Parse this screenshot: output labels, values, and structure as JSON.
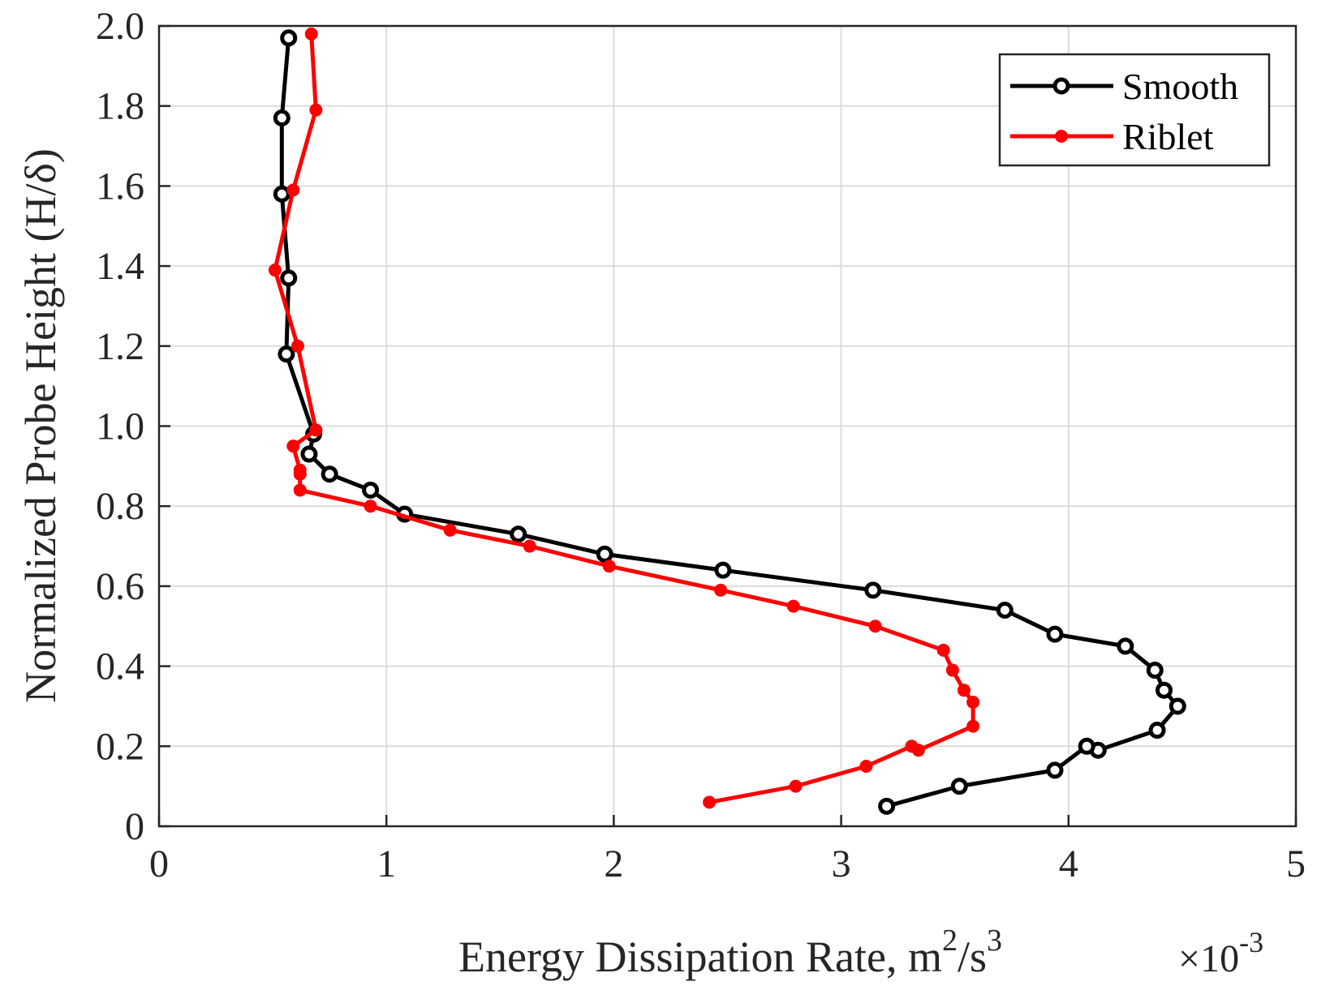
{
  "chart_data": {
    "type": "line",
    "xlabel": "Energy Dissipation Rate, m",
    "xlabel_sup1": "2",
    "xlabel_mid": "/s",
    "xlabel_sup2": "3",
    "x_multiplier": "×10",
    "x_multiplier_exp": "-3",
    "ylabel": "Normalized Probe Height (H/δ)",
    "xlim": [
      0,
      5
    ],
    "ylim": [
      0,
      2
    ],
    "xticks": [
      0,
      1,
      2,
      3,
      4,
      5
    ],
    "xtick_labels": [
      "0",
      "1",
      "2",
      "3",
      "4",
      "5"
    ],
    "yticks": [
      0,
      0.2,
      0.4,
      0.6,
      0.8,
      1.0,
      1.2,
      1.4,
      1.6,
      1.8,
      2.0
    ],
    "ytick_labels": [
      "0",
      "0.2",
      "0.4",
      "0.6",
      "0.8",
      "1.0",
      "1.2",
      "1.4",
      "1.6",
      "1.8",
      "2.0"
    ],
    "grid": true,
    "legend_position": "top-right",
    "series": [
      {
        "name": "Smooth",
        "color": "#000000",
        "marker": "open-circle",
        "x": [
          0.57,
          0.54,
          0.54,
          0.57,
          0.56,
          0.68,
          0.66,
          0.75,
          0.93,
          1.08,
          1.58,
          1.96,
          2.48,
          3.14,
          3.72,
          3.94,
          4.25,
          4.38,
          4.42,
          4.48,
          4.39,
          4.13,
          4.08,
          3.94,
          3.52,
          3.2
        ],
        "y": [
          1.97,
          1.77,
          1.58,
          1.37,
          1.18,
          0.98,
          0.93,
          0.88,
          0.84,
          0.78,
          0.73,
          0.68,
          0.64,
          0.59,
          0.54,
          0.48,
          0.45,
          0.39,
          0.34,
          0.3,
          0.24,
          0.19,
          0.2,
          0.14,
          0.1,
          0.05
        ]
      },
      {
        "name": "Riblet",
        "color": "#ff0000",
        "marker": "filled-dot",
        "x": [
          0.67,
          0.69,
          0.59,
          0.51,
          0.61,
          0.69,
          0.59,
          0.62,
          0.62,
          0.62,
          0.93,
          1.28,
          1.63,
          1.98,
          2.47,
          2.79,
          3.15,
          3.45,
          3.49,
          3.54,
          3.58,
          3.58,
          3.34,
          3.31,
          3.11,
          2.8,
          2.42
        ],
        "y": [
          1.98,
          1.79,
          1.59,
          1.39,
          1.2,
          0.99,
          0.95,
          0.89,
          0.88,
          0.84,
          0.8,
          0.74,
          0.7,
          0.65,
          0.59,
          0.55,
          0.5,
          0.44,
          0.39,
          0.34,
          0.31,
          0.25,
          0.19,
          0.2,
          0.15,
          0.1,
          0.06
        ]
      }
    ]
  }
}
